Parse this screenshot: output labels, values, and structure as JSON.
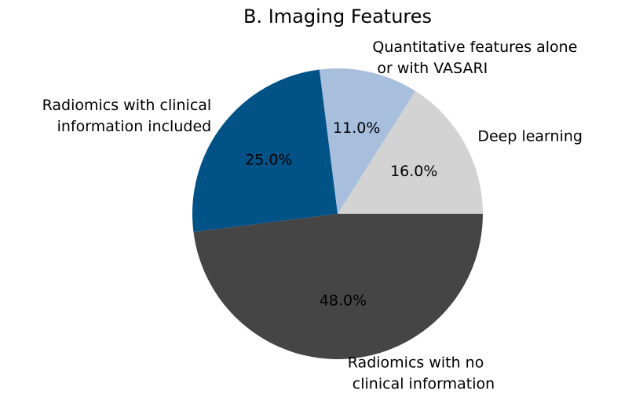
{
  "chart_data": {
    "type": "pie",
    "title": "B. Imaging Features",
    "categories": [
      "Deep learning",
      "Quantitative features alone\n or with VASARI",
      "Radiomics with clinical\ninformation included",
      "Radiomics with no\n clinical information"
    ],
    "values": [
      16,
      11,
      25,
      48
    ],
    "value_labels": [
      "16.0%",
      "11.0%",
      "25.0%",
      "48.0%"
    ],
    "colors": [
      "#d3d3d3",
      "#a8bedd",
      "#015287",
      "#454545"
    ]
  }
}
